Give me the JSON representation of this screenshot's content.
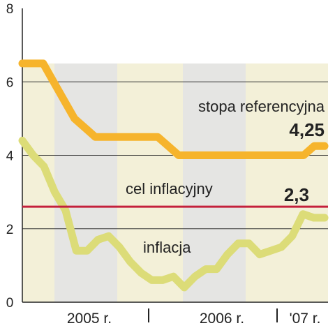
{
  "chart_data": {
    "type": "line",
    "title": "",
    "xlabel": "",
    "ylabel": "",
    "ylim": [
      0,
      8
    ],
    "yticks": [
      "0",
      "2",
      "4",
      "6",
      "8"
    ],
    "x_tick_labels": [
      "2005 r.",
      "2006 r.",
      "'07 r."
    ],
    "grid": "horizontal",
    "reference_line": {
      "name": "cel inflacyjny",
      "value": 2.6,
      "color": "#c4203c"
    },
    "series": [
      {
        "name": "stopa referencyjna",
        "color": "#f6b42c",
        "end_label": "4,25",
        "values": [
          6.5,
          6.5,
          6.5,
          6.0,
          5.5,
          5.0,
          4.75,
          4.5,
          4.5,
          4.5,
          4.5,
          4.5,
          4.5,
          4.5,
          4.25,
          4.0,
          4.0,
          4.0,
          4.0,
          4.0,
          4.0,
          4.0,
          4.0,
          4.0,
          4.0,
          4.0,
          4.0,
          4.0,
          4.25,
          4.25
        ]
      },
      {
        "name": "inflacja",
        "color": "#dcdc78",
        "end_label": "2,3",
        "values": [
          4.4,
          4.0,
          3.7,
          3.0,
          2.5,
          1.4,
          1.4,
          1.7,
          1.8,
          1.5,
          1.1,
          0.8,
          0.6,
          0.6,
          0.7,
          0.4,
          0.7,
          0.9,
          0.9,
          1.3,
          1.6,
          1.6,
          1.3,
          1.4,
          1.5,
          1.8,
          2.4,
          2.3,
          2.3
        ]
      }
    ]
  }
}
